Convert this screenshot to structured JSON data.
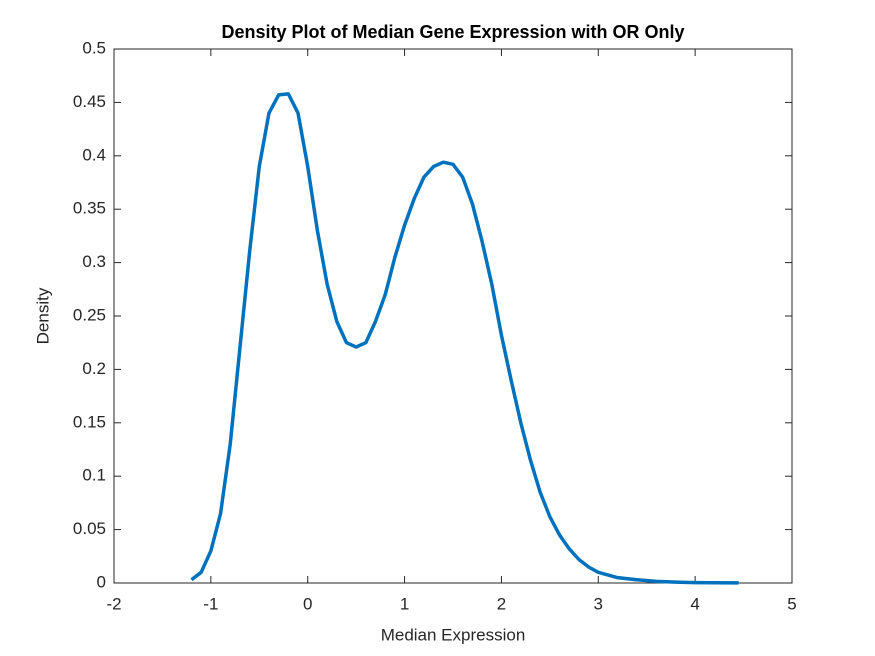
{
  "chart_data": {
    "type": "line",
    "title": "Density Plot of Median Gene Expression with OR Only",
    "xlabel": "Median Expression",
    "ylabel": "Density",
    "x": [
      -1.2,
      -1.1,
      -1.0,
      -0.9,
      -0.8,
      -0.7,
      -0.6,
      -0.5,
      -0.4,
      -0.3,
      -0.2,
      -0.1,
      0,
      0.1,
      0.2,
      0.3,
      0.4,
      0.5,
      0.6,
      0.7,
      0.8,
      0.9,
      1.0,
      1.1,
      1.2,
      1.3,
      1.4,
      1.5,
      1.6,
      1.7,
      1.8,
      1.9,
      2.0,
      2.1,
      2.2,
      2.3,
      2.4,
      2.5,
      2.6,
      2.7,
      2.8,
      2.9,
      3.0,
      3.2,
      3.4,
      3.6,
      3.8,
      4.0,
      4.2,
      4.45
    ],
    "series": [
      {
        "name": "Density",
        "color": "#0072bd",
        "values": [
          0.003,
          0.01,
          0.03,
          0.065,
          0.13,
          0.22,
          0.31,
          0.39,
          0.44,
          0.457,
          0.458,
          0.44,
          0.39,
          0.33,
          0.28,
          0.245,
          0.225,
          0.221,
          0.225,
          0.245,
          0.27,
          0.305,
          0.335,
          0.36,
          0.38,
          0.39,
          0.394,
          0.392,
          0.38,
          0.355,
          0.32,
          0.28,
          0.232,
          0.19,
          0.15,
          0.115,
          0.085,
          0.062,
          0.045,
          0.032,
          0.022,
          0.015,
          0.01,
          0.005,
          0.003,
          0.0015,
          0.0008,
          0.0004,
          0.0002,
          0.0001
        ]
      }
    ],
    "xlim": [
      -2,
      5
    ],
    "xticks": [
      -2,
      -1,
      0,
      1,
      2,
      3,
      4,
      5
    ],
    "ylim": [
      0,
      0.5
    ],
    "yticks": [
      0,
      0.05,
      0.1,
      0.15,
      0.2,
      0.25,
      0.3,
      0.35,
      0.4,
      0.45,
      0.5
    ],
    "grid": false
  }
}
